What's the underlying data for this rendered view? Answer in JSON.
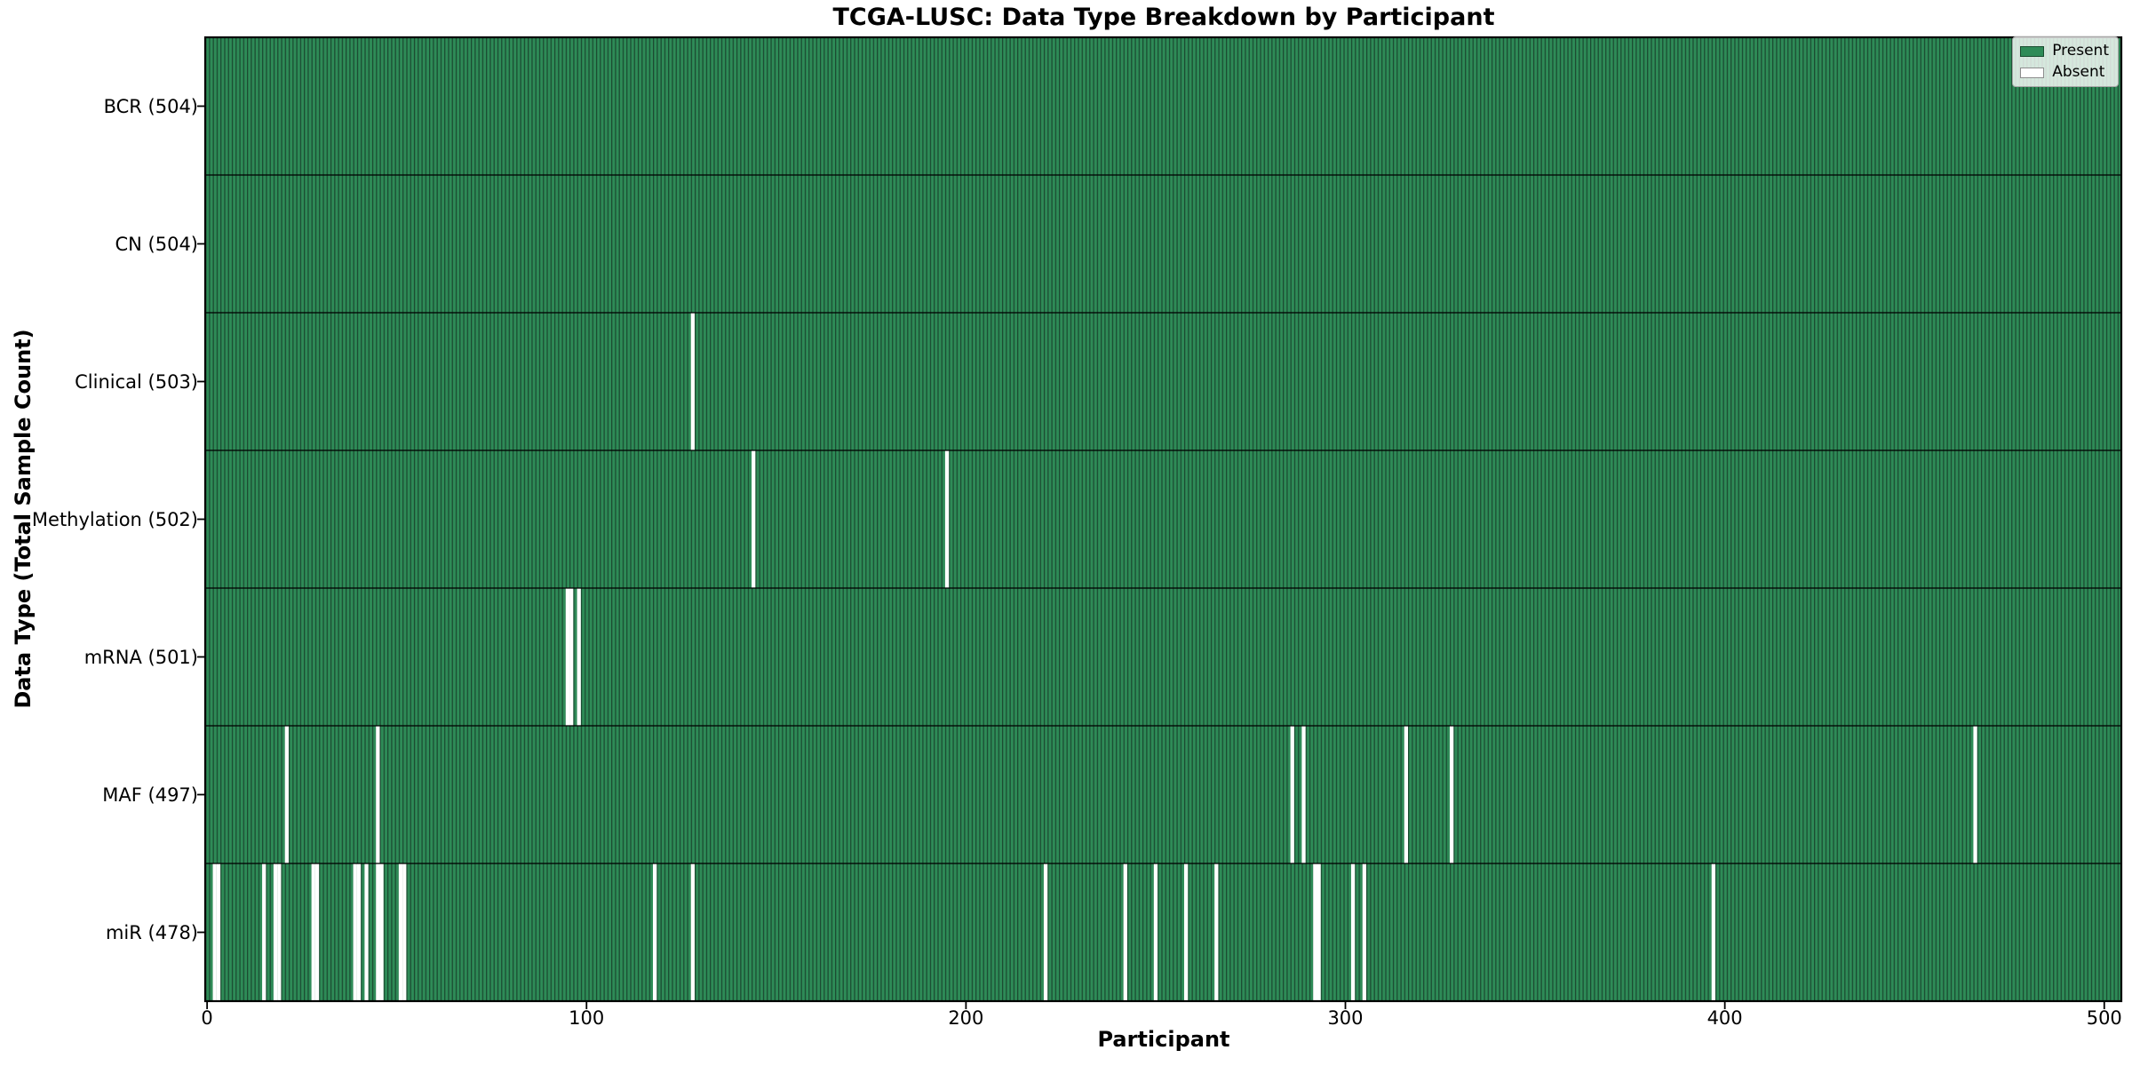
{
  "chart_data": {
    "type": "heatmap",
    "title": "TCGA-LUSC: Data Type Breakdown by Participant",
    "xlabel": "Participant",
    "ylabel": "Data Type (Total Sample Count)",
    "legend": [
      {
        "label": "Present",
        "color": "#2e8b57"
      },
      {
        "label": "Absent",
        "color": "#ffffff"
      }
    ],
    "legend_position": "upper right",
    "n_participants": 504,
    "x_ticks": [
      0,
      100,
      200,
      300,
      400,
      500
    ],
    "x_tick_labels": [
      "0",
      "100",
      "200",
      "300",
      "400",
      "500"
    ],
    "x_range": [
      -0.5,
      504.5
    ],
    "colors": {
      "present": "#2e8b57",
      "absent": "#ffffff",
      "bar_edge": "#1b4a31",
      "grid_line": "#000000"
    },
    "rows": [
      {
        "label": "BCR (504)",
        "data_type": "BCR",
        "total": 504,
        "absent_participants": []
      },
      {
        "label": "CN (504)",
        "data_type": "CN",
        "total": 504,
        "absent_participants": []
      },
      {
        "label": "Clinical (503)",
        "data_type": "Clinical",
        "total": 503,
        "absent_participants": [
          128
        ]
      },
      {
        "label": "Methylation (502)",
        "data_type": "Methylation",
        "total": 502,
        "absent_participants": [
          144,
          195
        ]
      },
      {
        "label": "mRNA (501)",
        "data_type": "mRNA",
        "total": 501,
        "absent_participants": [
          95,
          96,
          98
        ]
      },
      {
        "label": "MAF (497)",
        "data_type": "MAF",
        "total": 497,
        "absent_participants": [
          21,
          45,
          286,
          289,
          316,
          328,
          466
        ]
      },
      {
        "label": "miR (478)",
        "data_type": "miR",
        "total": 478,
        "absent_participants": [
          2,
          3,
          15,
          18,
          19,
          28,
          29,
          39,
          40,
          42,
          45,
          46,
          51,
          52,
          118,
          128,
          221,
          242,
          250,
          258,
          266,
          292,
          293,
          302,
          305,
          397
        ]
      }
    ]
  }
}
